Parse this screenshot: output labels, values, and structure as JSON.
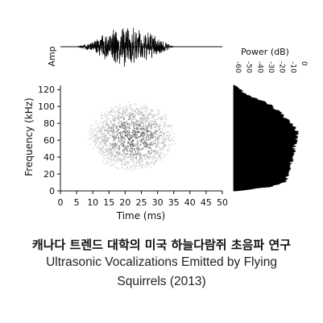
{
  "caption": {
    "korean": "캐나다 트렌드 대학의 미국 하늘다람쥐 초음파 연구",
    "english_line1": "Ultrasonic Vocalizations Emitted by Flying",
    "english_line2": "Squirrels (2013)"
  },
  "chart_data": [
    {
      "type": "line",
      "panel": "waveform",
      "ylabel": "Amp",
      "x": [
        0,
        5,
        10,
        15,
        20,
        25,
        30,
        35,
        40,
        45,
        50
      ],
      "x_unit": "ms",
      "envelope": [
        0,
        0,
        0.25,
        0.85,
        1.0,
        0.9,
        0.5,
        0,
        0,
        0,
        0
      ]
    },
    {
      "type": "heatmap",
      "panel": "spectrogram",
      "xlabel": "Time (ms)",
      "ylabel": "Frequency (kHz)",
      "xlim": [
        0,
        50
      ],
      "ylim": [
        0,
        125
      ],
      "xticks": [
        0,
        5,
        10,
        15,
        20,
        25,
        30,
        35,
        40,
        45,
        50
      ],
      "yticks": [
        0,
        20,
        40,
        60,
        80,
        100,
        120
      ],
      "time_range_ms": [
        8,
        36
      ],
      "frequency_range_khz": [
        10,
        110
      ],
      "peak_frequency_khz": 65
    },
    {
      "type": "area",
      "panel": "power-spectrum",
      "xlabel": "Power (dB)",
      "xticks": [
        -60,
        -50,
        -40,
        -30,
        -20,
        -10,
        0
      ],
      "xlim": [
        -60,
        0
      ],
      "frequency_khz": [
        0,
        5,
        10,
        15,
        20,
        25,
        30,
        35,
        40,
        45,
        50,
        55,
        60,
        65,
        70,
        75,
        80,
        85,
        90,
        95,
        100,
        105,
        110,
        115,
        120,
        125
      ],
      "power_db": [
        -58,
        -28,
        -14,
        -12,
        -11,
        -10,
        -9,
        -8,
        -7,
        -6,
        -5,
        -4,
        -3,
        -2,
        -3,
        -5,
        -8,
        -12,
        -16,
        -20,
        -25,
        -32,
        -42,
        -50,
        -55,
        -58
      ]
    }
  ]
}
